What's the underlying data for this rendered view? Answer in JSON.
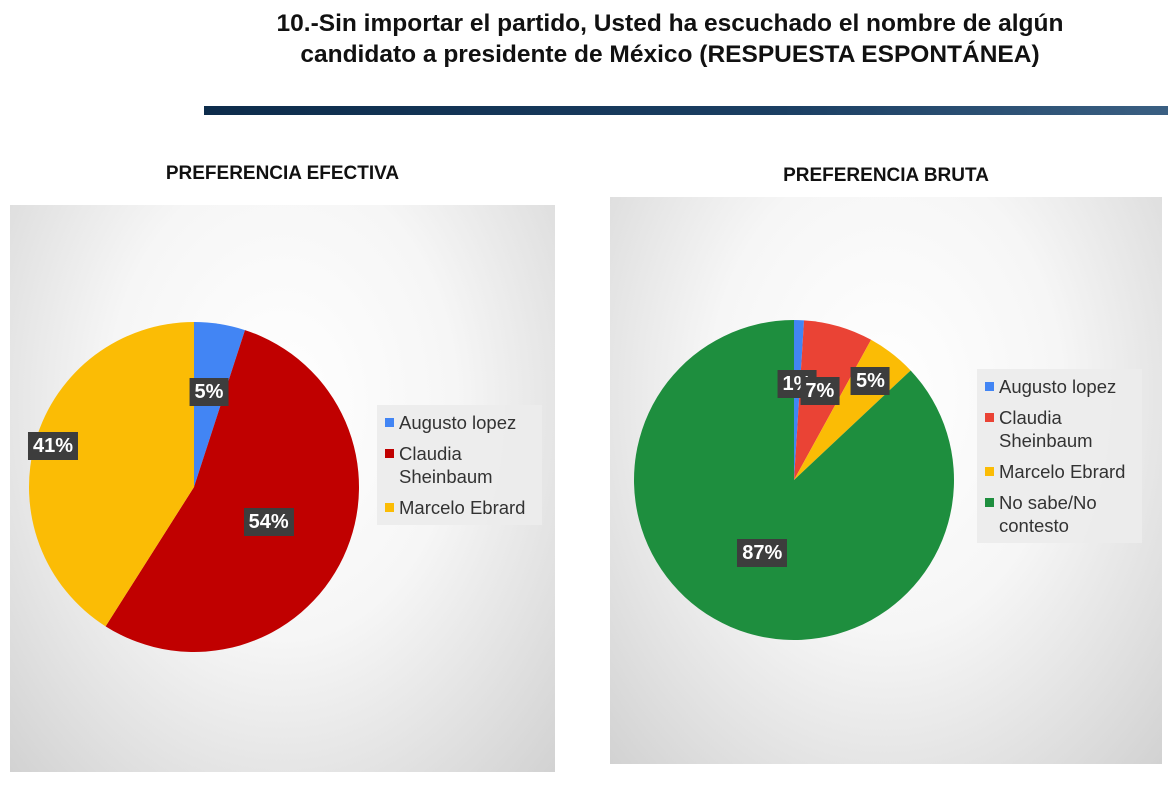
{
  "page": {
    "title_line1": "10.-Sin importar el partido, Usted ha escuchado el nombre de algún",
    "title_line2": "candidato a presidente de México (RESPUESTA ESPONTÁNEA)"
  },
  "chart_data": [
    {
      "type": "pie",
      "title": "PREFERENCIA EFECTIVA",
      "categories": [
        "Augusto lopez",
        "Claudia Sheinbaum",
        "Marcelo Ebrard"
      ],
      "values": [
        5,
        54,
        41
      ],
      "labels": [
        "5%",
        "54%",
        "41%"
      ],
      "colors": [
        "#4285f4",
        "#c00000",
        "#fbbc05"
      ],
      "legend_lines": [
        [
          "Augusto lopez"
        ],
        [
          "Claudia",
          "Sheinbaum"
        ],
        [
          "Marcelo Ebrard"
        ]
      ],
      "legend": "right"
    },
    {
      "type": "pie",
      "title": "PREFERENCIA BRUTA",
      "categories": [
        "Augusto lopez",
        "Claudia Sheinbaum",
        "Marcelo Ebrard",
        "No sabe/No contesto"
      ],
      "values": [
        1,
        7,
        5,
        87
      ],
      "labels": [
        "1%",
        "7%",
        "5%",
        "87%"
      ],
      "colors": [
        "#4285f4",
        "#ea4335",
        "#fbbc05",
        "#1e8e3e"
      ],
      "legend_lines": [
        [
          "Augusto lopez"
        ],
        [
          "Claudia",
          "Sheinbaum"
        ],
        [
          "Marcelo Ebrard"
        ],
        [
          "No sabe/No",
          "contesto"
        ]
      ],
      "legend": "right"
    }
  ]
}
